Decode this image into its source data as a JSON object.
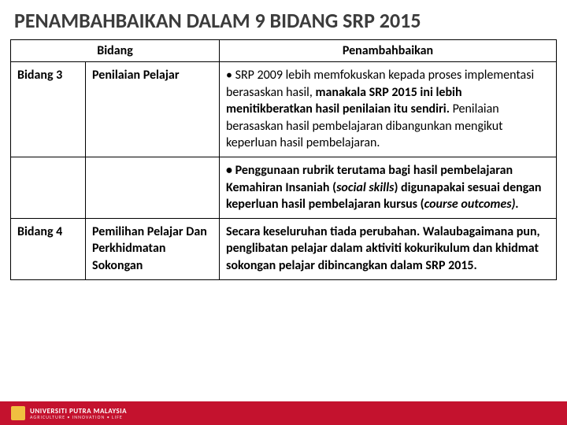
{
  "title": "PENAMBAHBAIKAN DALAM 9 BIDANG SRP 2015",
  "headers": {
    "col1": "Bidang",
    "col2": "Penambahbaikan"
  },
  "rows": {
    "r1": {
      "bidang": "Bidang 3",
      "topic": "Penilaian Pelajar",
      "desc_p1_a": "• SRP 2009 lebih memfokuskan kepada proses implementasi berasaskan hasil, ",
      "desc_p1_b": "manakala SRP 2015 ini lebih menitikberatkan hasil penilaian itu sendiri. ",
      "desc_p1_c": "Penilaian berasaskan hasil pembelajaran dibangunkan mengikut keperluan hasil pembelajaran."
    },
    "r2": {
      "desc_a": "• Penggunaan rubrik terutama bagi hasil pembelajaran Kemahiran Insaniah (",
      "desc_b": "social skills",
      "desc_c": ") digunapakai sesuai dengan keperluan hasil pembelajaran kursus (",
      "desc_d": "course outcomes).",
      "desc_e": ""
    },
    "r3": {
      "bidang": "Bidang 4",
      "topic": "Pemilihan Pelajar Dan Perkhidmatan Sokongan",
      "desc": "Secara keseluruhan tiada perubahan. Walaubagaimana pun, penglibatan pelajar dalam aktiviti kokurikulum dan khidmat sokongan pelajar dibincangkan dalam SRP 2015."
    }
  },
  "footer": {
    "uni": "UNIVERSITI PUTRA MALAYSIA",
    "tag": "AGRICULTURE • INNOVATION • LIFE"
  },
  "colors": {
    "footer_bg": "#c4122e",
    "border": "#000000",
    "title": "#3c3c3c"
  }
}
